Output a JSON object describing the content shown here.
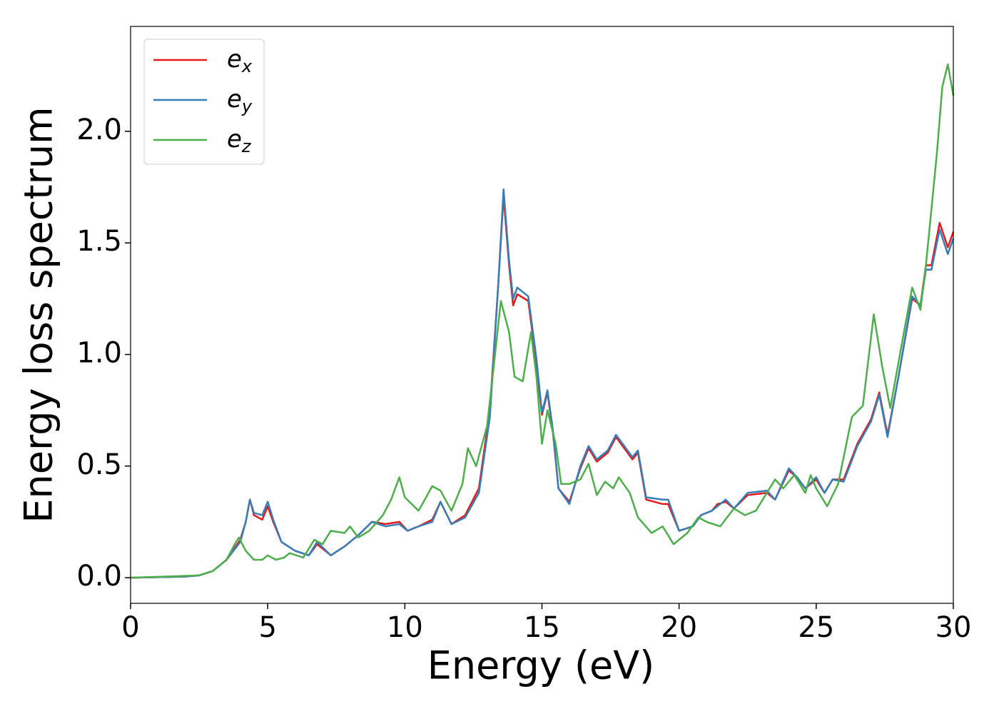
{
  "chart_data": {
    "type": "line",
    "xlabel": "Energy (eV)",
    "ylabel": "Energy loss spectrum",
    "xlim": [
      0,
      30
    ],
    "xticks": [
      0,
      5,
      10,
      15,
      20,
      25,
      30
    ],
    "ylim": [
      -0.115,
      2.47
    ],
    "yticks": [
      {
        "value": 0,
        "label": "0.0"
      },
      0.5,
      {
        "value": 1,
        "label": "1.0"
      },
      1.5,
      {
        "value": 2,
        "label": "2.0"
      }
    ],
    "legend": "upper left",
    "series": [
      {
        "name": "e_x",
        "color": "#e41a1c",
        "x": [
          0,
          2,
          2.5,
          3,
          3.5,
          4,
          4.2,
          4.35,
          4.5,
          4.8,
          5,
          5.2,
          5.5,
          6,
          6.5,
          6.8,
          7.3,
          7.8,
          8.3,
          8.8,
          9.3,
          9.8,
          10.1,
          10.5,
          11,
          11.3,
          11.7,
          12.2,
          12.7,
          13.1,
          13.4,
          13.6,
          13.8,
          13.95,
          14.1,
          14.5,
          14.8,
          15,
          15.2,
          15.4,
          15.6,
          16,
          16.4,
          16.7,
          17,
          17.4,
          17.7,
          18,
          18.3,
          18.5,
          18.8,
          19.4,
          19.6,
          20,
          20.5,
          20.8,
          21.2,
          21.4,
          21.7,
          22,
          22.5,
          23.2,
          23.5,
          24,
          24.3,
          24.6,
          25,
          25.3,
          25.6,
          26,
          26.5,
          27,
          27.3,
          27.6,
          28,
          28.5,
          28.8,
          29,
          29.2,
          29.5,
          29.8,
          30
        ],
        "values": [
          0,
          0.005,
          0.01,
          0.03,
          0.08,
          0.17,
          0.25,
          0.35,
          0.28,
          0.26,
          0.32,
          0.25,
          0.16,
          0.12,
          0.1,
          0.15,
          0.1,
          0.14,
          0.19,
          0.25,
          0.24,
          0.25,
          0.21,
          0.23,
          0.26,
          0.34,
          0.24,
          0.28,
          0.4,
          0.75,
          1.3,
          1.71,
          1.4,
          1.22,
          1.27,
          1.24,
          0.96,
          0.73,
          0.83,
          0.65,
          0.4,
          0.34,
          0.49,
          0.58,
          0.52,
          0.56,
          0.63,
          0.58,
          0.53,
          0.56,
          0.35,
          0.33,
          0.33,
          0.21,
          0.23,
          0.28,
          0.3,
          0.33,
          0.34,
          0.31,
          0.37,
          0.38,
          0.35,
          0.48,
          0.45,
          0.4,
          0.44,
          0.38,
          0.44,
          0.44,
          0.6,
          0.71,
          0.83,
          0.64,
          0.9,
          1.25,
          1.22,
          1.4,
          1.4,
          1.59,
          1.48,
          1.55
        ]
      },
      {
        "name": "e_y",
        "color": "#377eb8",
        "x": [
          0,
          2,
          2.5,
          3,
          3.5,
          4,
          4.2,
          4.35,
          4.5,
          4.8,
          5,
          5.2,
          5.5,
          6,
          6.5,
          6.8,
          7.3,
          7.8,
          8.3,
          8.8,
          9.3,
          9.8,
          10.1,
          10.5,
          11,
          11.3,
          11.7,
          12.2,
          12.7,
          13.1,
          13.4,
          13.6,
          13.8,
          13.95,
          14.1,
          14.5,
          14.8,
          15,
          15.2,
          15.4,
          15.6,
          16,
          16.4,
          16.7,
          17,
          17.4,
          17.7,
          18,
          18.3,
          18.5,
          18.8,
          19.4,
          19.6,
          20,
          20.5,
          20.8,
          21.2,
          21.4,
          21.7,
          22,
          22.5,
          23.2,
          23.5,
          24,
          24.3,
          24.6,
          25,
          25.3,
          25.6,
          26,
          26.5,
          27,
          27.3,
          27.6,
          28,
          28.5,
          28.8,
          29,
          29.2,
          29.5,
          29.8,
          30
        ],
        "values": [
          0,
          0.005,
          0.01,
          0.03,
          0.08,
          0.16,
          0.25,
          0.35,
          0.29,
          0.28,
          0.34,
          0.26,
          0.16,
          0.12,
          0.1,
          0.16,
          0.1,
          0.14,
          0.19,
          0.25,
          0.23,
          0.24,
          0.21,
          0.23,
          0.25,
          0.34,
          0.24,
          0.27,
          0.38,
          0.72,
          1.3,
          1.74,
          1.42,
          1.25,
          1.3,
          1.26,
          0.98,
          0.74,
          0.84,
          0.66,
          0.4,
          0.33,
          0.5,
          0.59,
          0.53,
          0.57,
          0.64,
          0.59,
          0.54,
          0.57,
          0.36,
          0.35,
          0.35,
          0.21,
          0.23,
          0.28,
          0.3,
          0.32,
          0.35,
          0.31,
          0.38,
          0.39,
          0.35,
          0.49,
          0.45,
          0.4,
          0.45,
          0.38,
          0.44,
          0.43,
          0.59,
          0.7,
          0.82,
          0.63,
          0.9,
          1.26,
          1.22,
          1.38,
          1.38,
          1.56,
          1.45,
          1.52
        ]
      },
      {
        "name": "e_z",
        "color": "#4daf4a",
        "x": [
          0,
          2.5,
          3,
          3.5,
          3.8,
          3.95,
          4.2,
          4.5,
          4.8,
          5,
          5.3,
          5.6,
          5.8,
          6.3,
          6.7,
          7,
          7.3,
          7.8,
          8,
          8.3,
          8.7,
          9.2,
          9.5,
          9.8,
          10,
          10.5,
          11,
          11.3,
          11.7,
          12.1,
          12.3,
          12.6,
          13,
          13.2,
          13.5,
          13.8,
          14,
          14.3,
          14.6,
          14.8,
          15,
          15.2,
          15.5,
          15.7,
          16,
          16.4,
          16.7,
          17,
          17.3,
          17.6,
          17.8,
          18.2,
          18.5,
          19,
          19.4,
          19.8,
          20.3,
          20.7,
          21,
          21.5,
          22,
          22.4,
          22.8,
          23.5,
          23.8,
          24.2,
          24.6,
          24.8,
          25,
          25.4,
          25.8,
          26.3,
          26.7,
          27.1,
          27.4,
          27.7,
          28.2,
          28.5,
          28.8,
          29,
          29.4,
          29.6,
          29.8,
          30
        ],
        "values": [
          0,
          0.01,
          0.03,
          0.08,
          0.15,
          0.18,
          0.12,
          0.08,
          0.08,
          0.1,
          0.08,
          0.09,
          0.11,
          0.09,
          0.17,
          0.15,
          0.21,
          0.2,
          0.23,
          0.18,
          0.21,
          0.28,
          0.35,
          0.45,
          0.36,
          0.3,
          0.41,
          0.39,
          0.3,
          0.42,
          0.58,
          0.5,
          0.68,
          0.9,
          1.24,
          1.1,
          0.9,
          0.88,
          1.1,
          0.9,
          0.6,
          0.75,
          0.6,
          0.42,
          0.42,
          0.44,
          0.51,
          0.37,
          0.43,
          0.4,
          0.45,
          0.38,
          0.27,
          0.2,
          0.23,
          0.15,
          0.2,
          0.27,
          0.25,
          0.23,
          0.31,
          0.28,
          0.3,
          0.44,
          0.4,
          0.46,
          0.38,
          0.46,
          0.4,
          0.32,
          0.42,
          0.72,
          0.77,
          1.18,
          0.95,
          0.76,
          1.1,
          1.3,
          1.2,
          1.4,
          1.9,
          2.2,
          2.3,
          2.16
        ]
      }
    ]
  }
}
